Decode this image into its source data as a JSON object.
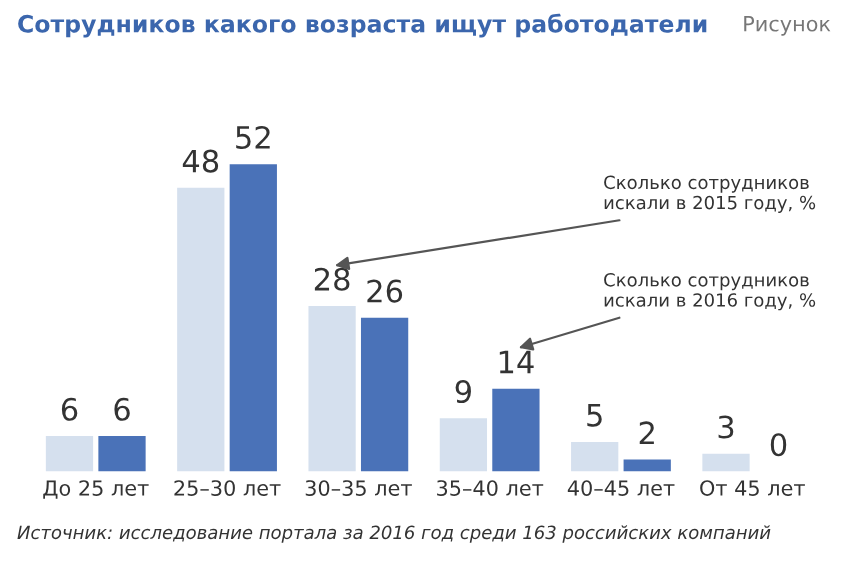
{
  "chart_data": {
    "type": "bar",
    "title": "Сотрудников какого возраста ищут работодатели",
    "subtitle": "Рисунок",
    "categories": [
      "До 25 лет",
      "25–30 лет",
      "30–35 лет",
      "35–40 лет",
      "40–45 лет",
      "От 45 лет"
    ],
    "series": [
      {
        "color": "#d5e0ee",
        "values": [
          6,
          48,
          28,
          9,
          5,
          3
        ]
      },
      {
        "color": "#4a72b8",
        "values": [
          6,
          52,
          26,
          14,
          2,
          0
        ]
      }
    ],
    "data_labels": true,
    "grid": false,
    "legend": false,
    "annotations": [
      "Сколько сотрудников\nискали в 2015 году, %",
      "Сколько сотрудников\nискали в 2016 году, %",
      "Источник: исследование портала за 2016 год среди 163 российских компаний"
    ]
  }
}
